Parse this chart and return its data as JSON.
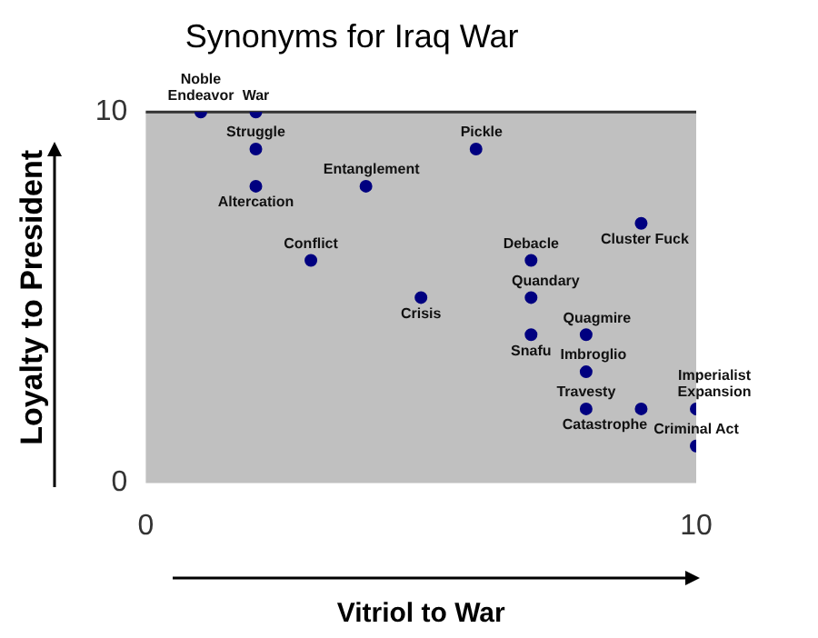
{
  "chart_data": {
    "type": "scatter",
    "title": "Synonyms for Iraq War",
    "xlabel": "Vitriol to War",
    "ylabel": "Loyalty to President",
    "x": [
      1,
      2,
      2,
      2,
      4,
      6,
      3,
      5,
      9,
      7,
      7,
      7,
      8,
      8,
      8,
      9,
      10,
      10
    ],
    "series": [
      {
        "color": "#000080",
        "values": [
          10,
          10,
          9,
          8,
          8,
          9,
          6,
          5,
          7,
          6,
          5,
          4,
          4,
          3,
          2,
          2,
          2,
          1
        ]
      }
    ],
    "xlim": [
      0,
      10
    ],
    "ylim": [
      0,
      10
    ],
    "xticks": [
      0,
      10
    ],
    "yticks": [
      0,
      10
    ],
    "grid": false,
    "legend": false,
    "marker": "circle",
    "annotations": [
      {
        "text": "Noble Endeavor",
        "x": 1,
        "y": 10
      },
      {
        "text": "War",
        "x": 2,
        "y": 10
      },
      {
        "text": "Struggle",
        "x": 2,
        "y": 9
      },
      {
        "text": "Altercation",
        "x": 2,
        "y": 8
      },
      {
        "text": "Entanglement",
        "x": 4,
        "y": 8
      },
      {
        "text": "Pickle",
        "x": 6,
        "y": 9
      },
      {
        "text": "Conflict",
        "x": 3,
        "y": 6
      },
      {
        "text": "Crisis",
        "x": 5,
        "y": 5
      },
      {
        "text": "Cluster Fuck",
        "x": 9,
        "y": 7
      },
      {
        "text": "Debacle",
        "x": 7,
        "y": 6
      },
      {
        "text": "Quandary",
        "x": 7,
        "y": 5
      },
      {
        "text": "Snafu",
        "x": 7,
        "y": 4
      },
      {
        "text": "Quagmire",
        "x": 8,
        "y": 4
      },
      {
        "text": "Imbroglio",
        "x": 8,
        "y": 3
      },
      {
        "text": "Travesty",
        "x": 8,
        "y": 2
      },
      {
        "text": "Catastrophe",
        "x": 9,
        "y": 2
      },
      {
        "text": "Imperialist Expansion",
        "x": 10,
        "y": 2
      },
      {
        "text": "Criminal Act",
        "x": 10,
        "y": 1
      }
    ]
  }
}
